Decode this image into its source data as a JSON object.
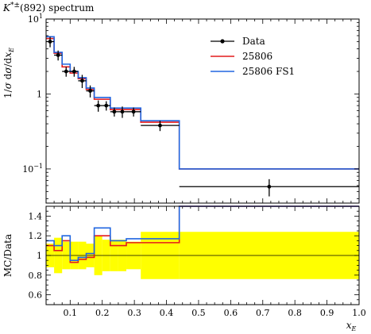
{
  "chart_data": {
    "type": "line",
    "title": "K*±(892) spectrum",
    "main": {
      "ylabel": "1/σ dσ/dx_E",
      "yscale": "log",
      "ylim": [
        0.035,
        10
      ],
      "xlim": [
        0.025,
        1.0
      ],
      "yticks": [
        {
          "value": 10,
          "label": "10^1"
        },
        {
          "value": 1,
          "label": "1"
        },
        {
          "value": 0.1,
          "label": "10^-1"
        }
      ]
    },
    "ratio": {
      "ylabel": "MC/Data",
      "ylim": [
        0.5,
        1.5
      ],
      "yticks": [
        "0.6",
        "0.8",
        "1",
        "1.2",
        "1.4"
      ]
    },
    "xlabel": "x_E",
    "xticks": [
      "0.1",
      "0.2",
      "0.3",
      "0.4",
      "0.5",
      "0.6",
      "0.7",
      "0.8",
      "0.9",
      "1.0"
    ],
    "legend": {
      "placement": "top-right",
      "entries": [
        {
          "label": "Data",
          "color": "#000000",
          "style": "point"
        },
        {
          "label": "25806",
          "color": "#e41a1c",
          "style": "line"
        },
        {
          "label": "25806 FS1",
          "color": "#2166e0",
          "style": "line"
        }
      ]
    },
    "bin_edges": [
      0.025,
      0.05,
      0.075,
      0.1,
      0.125,
      0.15,
      0.175,
      0.2,
      0.225,
      0.25,
      0.275,
      0.32,
      0.44,
      1.0
    ],
    "data": {
      "x": [
        0.0375,
        0.0625,
        0.0875,
        0.1125,
        0.1375,
        0.1625,
        0.1875,
        0.2125,
        0.2375,
        0.2625,
        0.2975,
        0.38,
        0.72
      ],
      "y": [
        5.0,
        3.3,
        2.0,
        2.0,
        1.5,
        1.1,
        0.7,
        0.7,
        0.58,
        0.58,
        0.58,
        0.38,
        0.058
      ],
      "yerr": [
        0.8,
        0.5,
        0.3,
        0.3,
        0.3,
        0.2,
        0.12,
        0.1,
        0.08,
        0.1,
        0.08,
        0.06,
        0.015
      ]
    },
    "series": [
      {
        "name": "25806",
        "color": "#e41a1c",
        "values": [
          5.5,
          3.5,
          2.3,
          1.9,
          1.6,
          1.15,
          0.85,
          0.85,
          0.62,
          0.62,
          0.62,
          0.42,
          0.1
        ],
        "ratio": [
          1.1,
          1.05,
          1.15,
          0.93,
          0.96,
          0.98,
          1.2,
          1.2,
          1.1,
          1.1,
          1.13,
          1.13,
          1.72
        ]
      },
      {
        "name": "25806 FS1",
        "color": "#2166e0",
        "values": [
          5.8,
          3.6,
          2.5,
          2.0,
          1.65,
          1.2,
          0.9,
          0.9,
          0.65,
          0.65,
          0.65,
          0.44,
          0.1
        ],
        "ratio": [
          1.15,
          1.1,
          1.2,
          0.95,
          0.98,
          1.02,
          1.28,
          1.28,
          1.15,
          1.15,
          1.17,
          1.17,
          1.72
        ]
      }
    ],
    "ratio_band": {
      "color": "#ffff00",
      "lower": [
        0.88,
        0.82,
        0.86,
        0.86,
        0.86,
        0.88,
        0.8,
        0.84,
        0.84,
        0.84,
        0.86,
        0.76,
        0.76
      ],
      "upper": [
        1.12,
        1.18,
        1.14,
        1.14,
        1.14,
        1.12,
        1.2,
        1.16,
        1.16,
        1.16,
        1.14,
        1.24,
        1.24
      ]
    }
  }
}
